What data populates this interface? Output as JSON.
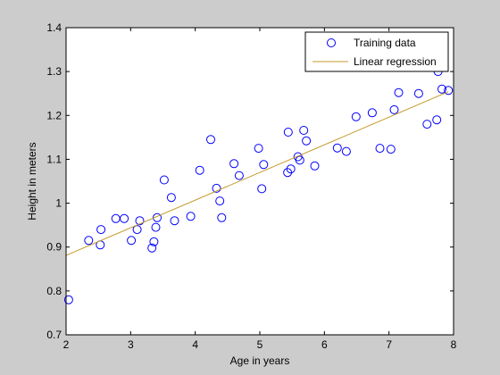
{
  "chart_data": {
    "type": "scatter",
    "title": "",
    "xlabel": "Age in years",
    "ylabel": "Height in meters",
    "xlim": [
      2,
      8
    ],
    "ylim": [
      0.7,
      1.4
    ],
    "xticks": [
      2,
      3,
      4,
      5,
      6,
      7,
      8
    ],
    "yticks": [
      0.7,
      0.8,
      0.9,
      1,
      1.1,
      1.2,
      1.3,
      1.4
    ],
    "grid": false,
    "legend_position": "top-right",
    "series": [
      {
        "name": "Training data",
        "kind": "scatter",
        "marker": "circle-open",
        "color": "#0000ff",
        "points": [
          [
            2.04,
            0.78
          ],
          [
            2.35,
            0.915
          ],
          [
            2.53,
            0.905
          ],
          [
            2.54,
            0.94
          ],
          [
            2.77,
            0.965
          ],
          [
            2.9,
            0.965
          ],
          [
            3.01,
            0.915
          ],
          [
            3.1,
            0.94
          ],
          [
            3.14,
            0.96
          ],
          [
            3.33,
            0.898
          ],
          [
            3.36,
            0.912
          ],
          [
            3.39,
            0.945
          ],
          [
            3.41,
            0.967
          ],
          [
            3.52,
            1.053
          ],
          [
            3.63,
            1.013
          ],
          [
            3.68,
            0.96
          ],
          [
            3.93,
            0.97
          ],
          [
            4.07,
            1.075
          ],
          [
            4.24,
            1.145
          ],
          [
            4.33,
            1.034
          ],
          [
            4.38,
            1.005
          ],
          [
            4.41,
            0.967
          ],
          [
            4.6,
            1.09
          ],
          [
            4.68,
            1.063
          ],
          [
            4.98,
            1.125
          ],
          [
            5.03,
            1.033
          ],
          [
            5.06,
            1.088
          ],
          [
            5.43,
            1.07
          ],
          [
            5.44,
            1.162
          ],
          [
            5.48,
            1.078
          ],
          [
            5.59,
            1.106
          ],
          [
            5.62,
            1.098
          ],
          [
            5.68,
            1.166
          ],
          [
            5.72,
            1.142
          ],
          [
            5.85,
            1.085
          ],
          [
            6.2,
            1.126
          ],
          [
            6.34,
            1.118
          ],
          [
            6.49,
            1.197
          ],
          [
            6.74,
            1.206
          ],
          [
            6.86,
            1.125
          ],
          [
            7.03,
            1.123
          ],
          [
            7.08,
            1.213
          ],
          [
            7.15,
            1.252
          ],
          [
            7.46,
            1.25
          ],
          [
            7.59,
            1.18
          ],
          [
            7.74,
            1.19
          ],
          [
            7.76,
            1.3
          ],
          [
            7.82,
            1.26
          ],
          [
            7.92,
            1.257
          ]
        ]
      },
      {
        "name": "Linear regression",
        "kind": "line",
        "color": "#c49a2a",
        "points": [
          [
            2,
            0.881
          ],
          [
            7.92,
            1.254
          ]
        ]
      }
    ]
  }
}
